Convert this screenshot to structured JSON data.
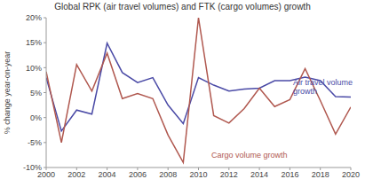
{
  "chart_data": {
    "type": "line",
    "title": "Global RPK (air travel volumes) and FTK (cargo volumes) growth",
    "y_label": "% change year-on-year",
    "x": [
      2000,
      2001,
      2002,
      2003,
      2004,
      2005,
      2006,
      2007,
      2008,
      2009,
      2010,
      2011,
      2012,
      2013,
      2014,
      2015,
      2016,
      2017,
      2018,
      2019,
      2020
    ],
    "series": [
      {
        "name": "Air travel volume growth",
        "color": "#4a4aa6",
        "values": [
          8,
          -2.7,
          1.5,
          0.7,
          14.9,
          9,
          7,
          8,
          2.5,
          -1.2,
          8,
          6.5,
          5.3,
          5.7,
          5.9,
          7.4,
          7.4,
          8.1,
          7.4,
          4.2,
          4.1
        ]
      },
      {
        "name": "Cargo volume growth",
        "color": "#b0584f",
        "values": [
          9.2,
          -5,
          10.6,
          5.3,
          12.9,
          3.8,
          4.8,
          3.8,
          -3.5,
          -9,
          20,
          0.4,
          -1.1,
          1.8,
          5.9,
          2.2,
          3.6,
          9.8,
          3.4,
          -3.3,
          2.1
        ]
      }
    ],
    "xlim": [
      2000,
      2020
    ],
    "xticks": [
      2000,
      2002,
      2004,
      2006,
      2008,
      2010,
      2012,
      2014,
      2016,
      2018,
      2020
    ],
    "ylim": [
      -10,
      20
    ],
    "yticks": [
      {
        "value": -10,
        "label": "-10%"
      },
      {
        "value": -5,
        "label": "-5%"
      },
      {
        "value": 0,
        "label": "0%"
      },
      {
        "value": 5,
        "label": "5%"
      },
      {
        "value": 10,
        "label": "10%"
      },
      {
        "value": 15,
        "label": "15%"
      },
      {
        "value": 20,
        "label": "20%"
      }
    ],
    "grid": false
  }
}
